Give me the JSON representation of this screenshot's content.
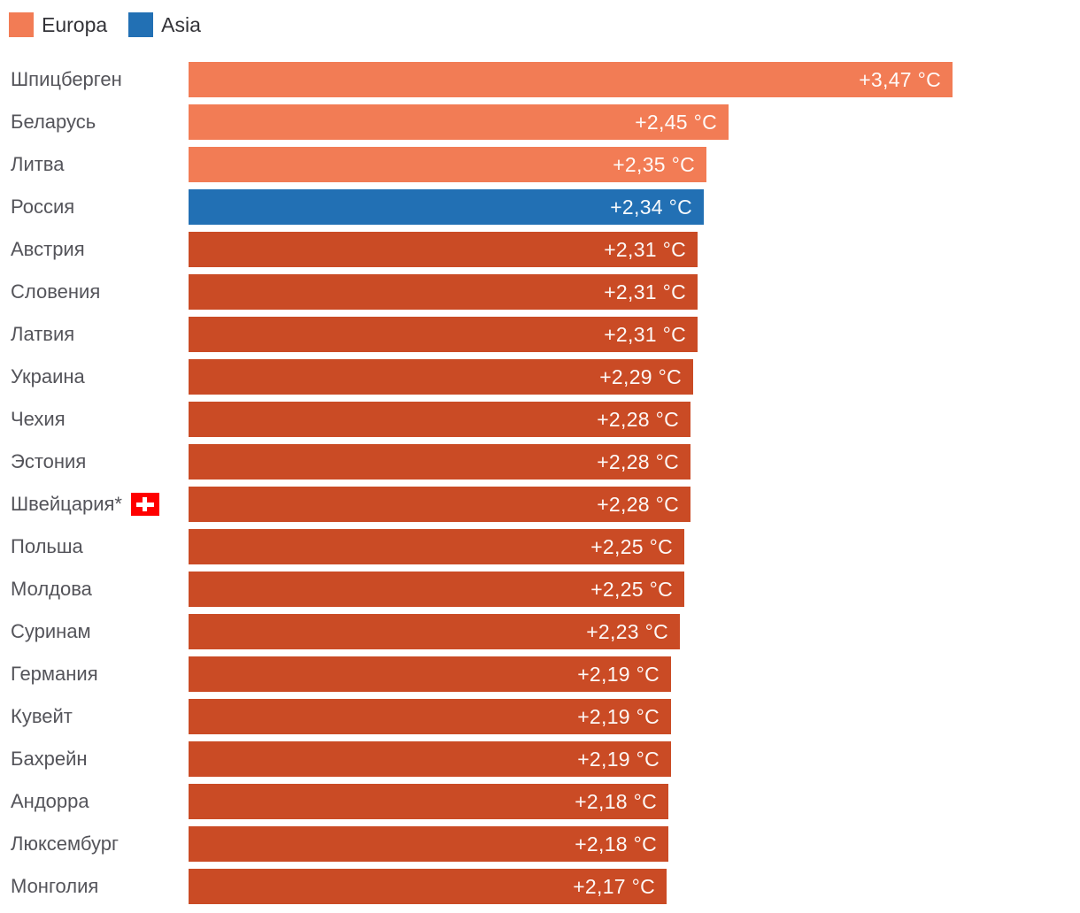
{
  "legend": {
    "items": [
      {
        "label": "Europa",
        "color": "#F27C55"
      },
      {
        "label": "Asia",
        "color": "#2270B4"
      }
    ]
  },
  "colors": {
    "salmon": "#F27C55",
    "blue": "#2270B4",
    "red": "#CA4B25",
    "flag_red": "#FF0000",
    "label_gray": "#54545a"
  },
  "chart_data": {
    "type": "bar",
    "orientation": "horizontal",
    "unit": "°C",
    "xlim": [
      0,
      3.6
    ],
    "grid": false,
    "legend_position": "top-left",
    "legend": [
      {
        "name": "Europa",
        "color": "#F27C55"
      },
      {
        "name": "Asia",
        "color": "#2270B4"
      }
    ],
    "rows": [
      {
        "label": "Шпицберген",
        "value": 3.47,
        "display": "+3,47 °C",
        "color": "#F27C55"
      },
      {
        "label": "Беларусь",
        "value": 2.45,
        "display": "+2,45 °C",
        "color": "#F27C55"
      },
      {
        "label": "Литва",
        "value": 2.35,
        "display": "+2,35 °C",
        "color": "#F27C55"
      },
      {
        "label": "Россия",
        "value": 2.34,
        "display": "+2,34 °C",
        "color": "#2270B4"
      },
      {
        "label": "Австрия",
        "value": 2.31,
        "display": "+2,31 °C",
        "color": "#CA4B25"
      },
      {
        "label": "Словения",
        "value": 2.31,
        "display": "+2,31 °C",
        "color": "#CA4B25"
      },
      {
        "label": "Латвия",
        "value": 2.31,
        "display": "+2,31 °C",
        "color": "#CA4B25"
      },
      {
        "label": "Украина",
        "value": 2.29,
        "display": "+2,29 °C",
        "color": "#CA4B25"
      },
      {
        "label": "Чехия",
        "value": 2.28,
        "display": "+2,28 °C",
        "color": "#CA4B25"
      },
      {
        "label": "Эстония",
        "value": 2.28,
        "display": "+2,28 °C",
        "color": "#CA4B25"
      },
      {
        "label": "Швейцария*",
        "value": 2.28,
        "display": "+2,28 °C",
        "color": "#CA4B25",
        "flag_icon": "switzerland"
      },
      {
        "label": "Польша",
        "value": 2.25,
        "display": "+2,25 °C",
        "color": "#CA4B25"
      },
      {
        "label": "Молдова",
        "value": 2.25,
        "display": "+2,25 °C",
        "color": "#CA4B25"
      },
      {
        "label": "Суринам",
        "value": 2.23,
        "display": "+2,23 °C",
        "color": "#CA4B25"
      },
      {
        "label": "Германия",
        "value": 2.19,
        "display": "+2,19 °C",
        "color": "#CA4B25"
      },
      {
        "label": "Кувейт",
        "value": 2.19,
        "display": "+2,19 °C",
        "color": "#CA4B25"
      },
      {
        "label": "Бахрейн",
        "value": 2.19,
        "display": "+2,19 °C",
        "color": "#CA4B25"
      },
      {
        "label": "Андорра",
        "value": 2.18,
        "display": "+2,18 °C",
        "color": "#CA4B25"
      },
      {
        "label": "Люксембург",
        "value": 2.18,
        "display": "+2,18 °C",
        "color": "#CA4B25"
      },
      {
        "label": "Монголия",
        "value": 2.17,
        "display": "+2,17 °C",
        "color": "#CA4B25"
      }
    ]
  }
}
